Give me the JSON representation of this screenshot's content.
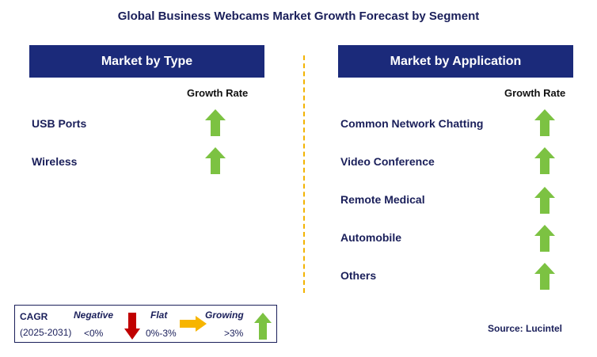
{
  "title": "Global Business Webcams Market Growth Forecast by Segment",
  "left_panel": {
    "header": "Market by Type",
    "column_label": "Growth Rate",
    "rows": [
      {
        "label": "USB Ports",
        "trend": "growing"
      },
      {
        "label": "Wireless",
        "trend": "growing"
      }
    ]
  },
  "right_panel": {
    "header": "Market by Application",
    "column_label": "Growth Rate",
    "rows": [
      {
        "label": "Common Network Chatting",
        "trend": "growing"
      },
      {
        "label": "Video Conference",
        "trend": "growing"
      },
      {
        "label": "Remote Medical",
        "trend": "growing"
      },
      {
        "label": "Automobile",
        "trend": "growing"
      },
      {
        "label": "Others",
        "trend": "growing"
      }
    ]
  },
  "legend": {
    "cagr_label": "CAGR",
    "period": "(2025-2031)",
    "negative_label": "Negative",
    "negative_range": "<0%",
    "flat_label": "Flat",
    "flat_range": "0%-3%",
    "growing_label": "Growing",
    "growing_range": ">3%"
  },
  "source": "Source: Lucintel",
  "colors": {
    "header_bg": "#1b2a7a",
    "text": "#1a1f5a",
    "growing_arrow": "#7cc242",
    "flat_arrow": "#f7b500",
    "negative_arrow": "#c00000",
    "divider": "#f2b300"
  },
  "icons": {
    "growing": "up-arrow-icon",
    "flat": "right-arrow-icon",
    "negative": "down-arrow-icon"
  }
}
